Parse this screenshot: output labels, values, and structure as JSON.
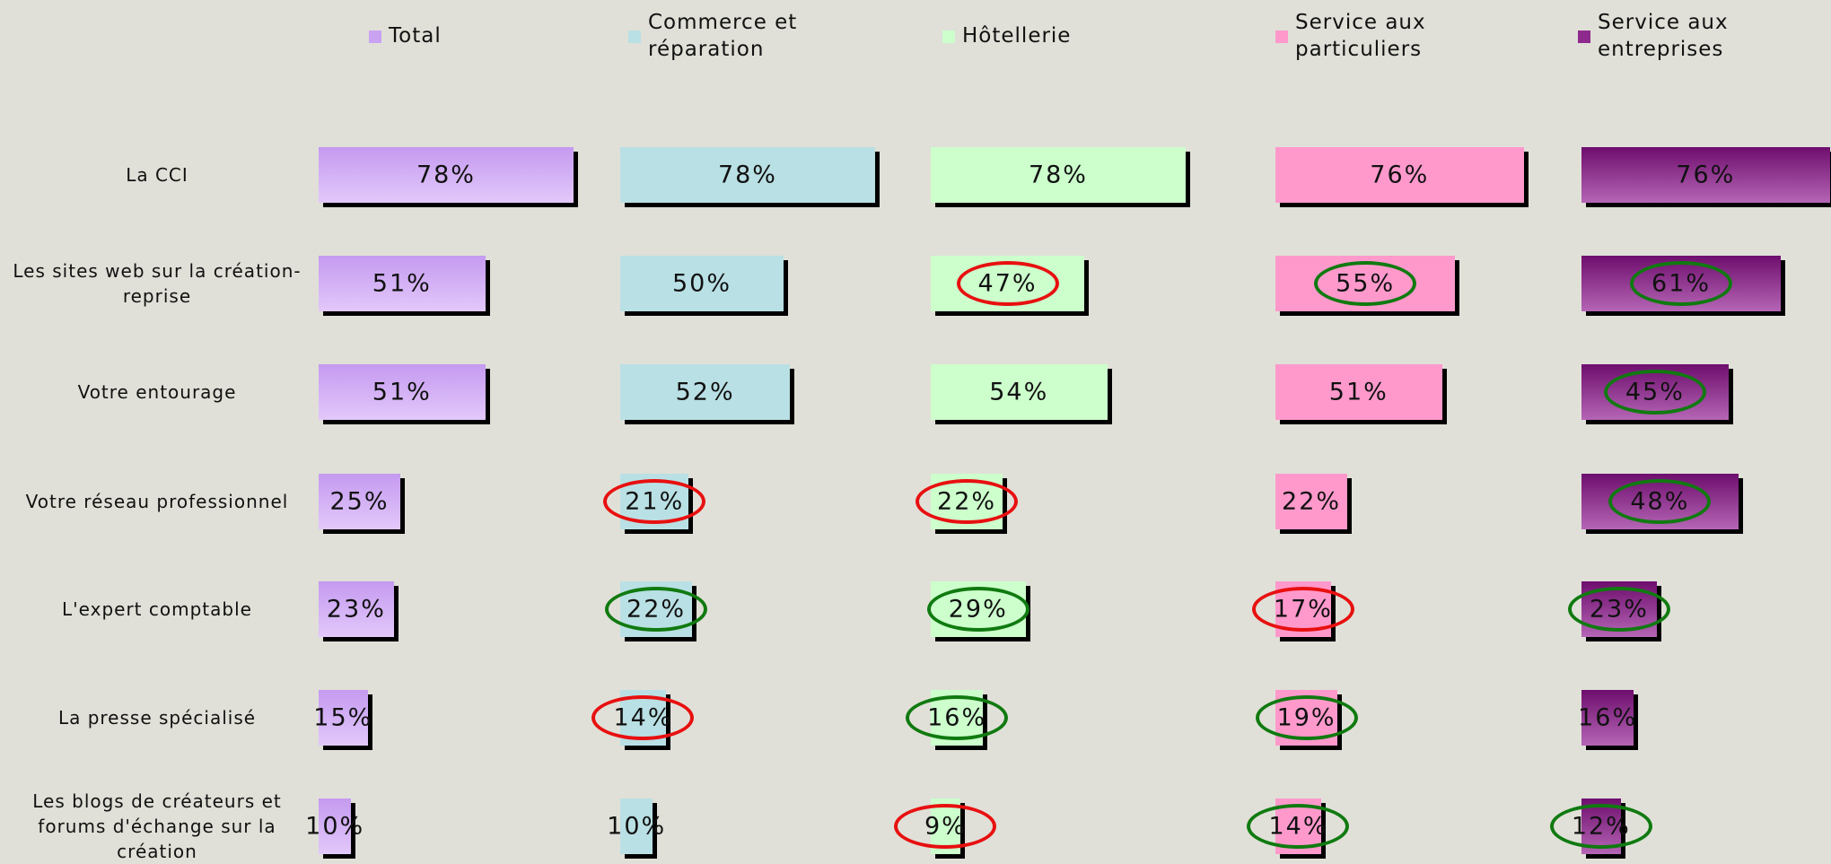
{
  "chart_data": {
    "type": "bar",
    "categories": [
      "La CCI",
      "Les sites web sur la création-reprise",
      "Votre entourage",
      "Votre réseau professionnel",
      "L'expert comptable",
      "La presse spécialisé",
      "Les blogs de créateurs et forums d'échange sur la création"
    ],
    "series": [
      {
        "name": "Total",
        "color": "#c9a2f2",
        "values": [
          78,
          51,
          51,
          25,
          23,
          15,
          10
        ],
        "value_labels": [
          "78%",
          "51%",
          "51%",
          "25%",
          "23%",
          "15%",
          "10%"
        ],
        "circles": [
          null,
          null,
          null,
          null,
          null,
          null,
          null
        ]
      },
      {
        "name": "Commerce et réparation",
        "color": "#b9e0e4",
        "values": [
          78,
          50,
          52,
          21,
          22,
          14,
          10
        ],
        "value_labels": [
          "78%",
          "50%",
          "52%",
          "21%",
          "22%",
          "14%",
          "10%"
        ],
        "circles": [
          null,
          null,
          null,
          "red",
          "green",
          "red",
          null
        ]
      },
      {
        "name": "Hôtellerie",
        "color": "#ccffcc",
        "values": [
          78,
          47,
          54,
          22,
          29,
          16,
          9
        ],
        "value_labels": [
          "78%",
          "47%",
          "54%",
          "22%",
          "29%",
          "16%",
          "9%"
        ],
        "circles": [
          null,
          "red",
          null,
          "red",
          "green",
          "green",
          "red"
        ]
      },
      {
        "name": "Service aux particuliers",
        "color": "#ff99cc",
        "values": [
          76,
          55,
          51,
          22,
          17,
          19,
          14
        ],
        "value_labels": [
          "76%",
          "55%",
          "51%",
          "22%",
          "17%",
          "19%",
          "14%"
        ],
        "circles": [
          null,
          "green",
          null,
          null,
          "red",
          "green",
          "green"
        ]
      },
      {
        "name": "Service aux entreprises",
        "color": "#8e2a8e",
        "values": [
          76,
          61,
          45,
          48,
          23,
          16,
          12
        ],
        "value_labels": [
          "76%",
          "61%",
          "45%",
          "48%",
          "23%",
          "16%",
          "12%"
        ],
        "circles": [
          null,
          "green",
          "green",
          "green",
          "green",
          null,
          "green"
        ]
      }
    ]
  }
}
